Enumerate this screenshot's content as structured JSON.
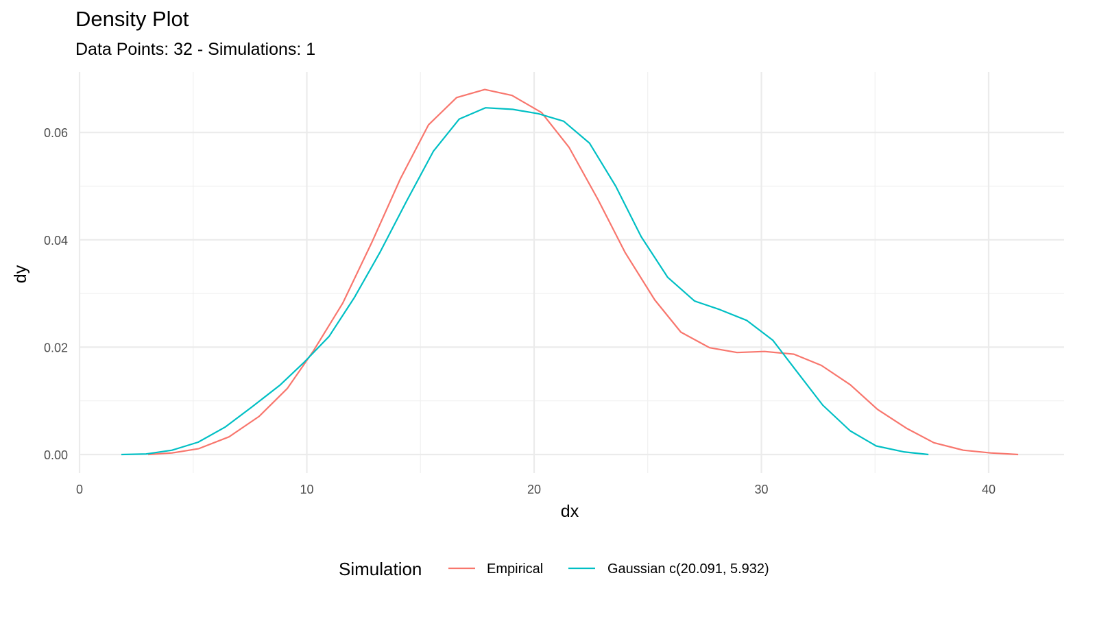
{
  "chart_data": {
    "type": "line",
    "title": "Density Plot",
    "subtitle": "Data Points: 32 - Simulations: 1",
    "xlabel": "dx",
    "ylabel": "dy",
    "xlim": [
      0,
      43
    ],
    "ylim": [
      0,
      0.07
    ],
    "xticks": [
      0,
      10,
      20,
      30,
      40
    ],
    "xtick_labels": [
      "0",
      "10",
      "20",
      "30",
      "40"
    ],
    "yticks": [
      0,
      0.02,
      0.04,
      0.06
    ],
    "ytick_labels": [
      "0.00",
      "0.02",
      "0.04",
      "0.06"
    ],
    "grid": true,
    "legend": {
      "title": "Simulation",
      "position": "bottom"
    },
    "series": [
      {
        "name": "Empirical",
        "color": "#F8766D",
        "x": [
          3.02,
          4.07,
          5.25,
          6.58,
          7.9,
          9.14,
          10.29,
          11.58,
          12.88,
          14.12,
          15.35,
          16.59,
          17.83,
          19.03,
          20.33,
          21.54,
          22.81,
          24.01,
          25.31,
          26.46,
          27.72,
          28.93,
          30.14,
          31.43,
          32.64,
          33.91,
          35.11,
          36.38,
          37.59,
          38.88,
          40.09,
          41.3
        ],
        "y": [
          0.0,
          0.0003,
          0.0011,
          0.0033,
          0.0071,
          0.0123,
          0.0193,
          0.0282,
          0.0397,
          0.0514,
          0.0614,
          0.0665,
          0.068,
          0.0669,
          0.0637,
          0.0572,
          0.0475,
          0.0376,
          0.0288,
          0.0228,
          0.0199,
          0.019,
          0.0192,
          0.0187,
          0.0166,
          0.013,
          0.0084,
          0.0049,
          0.0022,
          0.0008,
          0.0003,
          0.0
        ]
      },
      {
        "name": "Gaussian c(20.091, 5.932)",
        "color": "#00BFC4",
        "x": [
          1.84,
          2.93,
          4.07,
          5.22,
          6.4,
          7.6,
          8.84,
          9.86,
          10.98,
          12.1,
          13.21,
          14.39,
          15.57,
          16.71,
          17.86,
          19.06,
          20.18,
          21.3,
          22.44,
          23.59,
          24.71,
          25.88,
          27.06,
          28.17,
          29.35,
          30.5,
          31.55,
          32.7,
          33.91,
          35.05,
          36.26,
          37.35
        ],
        "y": [
          0.0,
          0.0001,
          0.0008,
          0.0023,
          0.0051,
          0.0089,
          0.013,
          0.0171,
          0.022,
          0.0293,
          0.0376,
          0.0472,
          0.0565,
          0.0625,
          0.0646,
          0.0643,
          0.0635,
          0.0621,
          0.058,
          0.05,
          0.0406,
          0.033,
          0.0286,
          0.027,
          0.025,
          0.0213,
          0.0155,
          0.0092,
          0.0044,
          0.0016,
          0.0005,
          0.0
        ]
      }
    ]
  }
}
